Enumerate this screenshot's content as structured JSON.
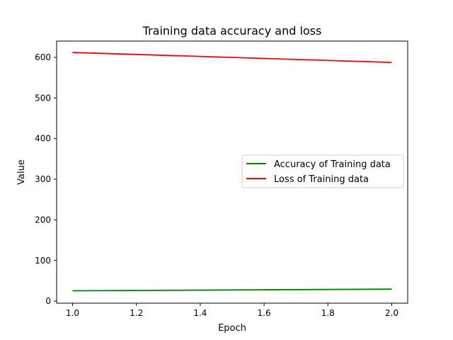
{
  "chart_data": {
    "type": "line",
    "title": "Training data accuracy and loss",
    "xlabel": "Epoch",
    "ylabel": "Value",
    "x": [
      1.0,
      2.0
    ],
    "xlim": [
      0.95,
      2.05
    ],
    "ylim": [
      -5,
      640
    ],
    "xticks": [
      "1.0",
      "1.2",
      "1.4",
      "1.6",
      "1.8",
      "2.0"
    ],
    "yticks": [
      "0",
      "100",
      "200",
      "300",
      "400",
      "500",
      "600"
    ],
    "grid": false,
    "legend_position": "center-right",
    "series": [
      {
        "name": "Accuracy of Training data",
        "color": "#008000",
        "values": [
          25.5,
          29.5
        ]
      },
      {
        "name": "Loss of Training data",
        "color": "#ff0000",
        "values": [
          612,
          587.5
        ]
      }
    ]
  }
}
